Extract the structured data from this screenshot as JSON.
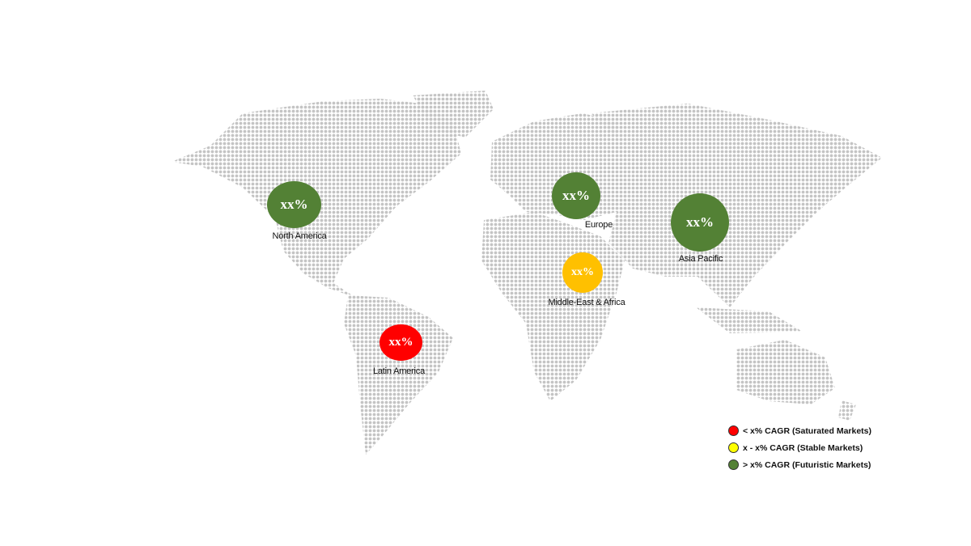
{
  "colors": {
    "saturated": "#ff0000",
    "stable": "#ffc000",
    "futuristic": "#538135",
    "legend_stable": "#ffff00",
    "map_dots": "#c4c4c4"
  },
  "regions": [
    {
      "name": "North America",
      "value": "xx%",
      "category": "futuristic"
    },
    {
      "name": "Europe",
      "value": "xx%",
      "category": "futuristic"
    },
    {
      "name": "Asia Pacific",
      "value": "xx%",
      "category": "futuristic"
    },
    {
      "name": "Middle-East & Africa",
      "value": "xx%",
      "category": "stable"
    },
    {
      "name": "Latin America",
      "value": "xx%",
      "category": "saturated"
    }
  ],
  "legend": [
    {
      "label": "< x% CAGR (Saturated Markets)",
      "icon": "red-circle"
    },
    {
      "label": "x - x% CAGR (Stable Markets)",
      "icon": "yellow-circle"
    },
    {
      "label": "> x% CAGR (Futuristic Markets)",
      "icon": "green-circle"
    }
  ]
}
